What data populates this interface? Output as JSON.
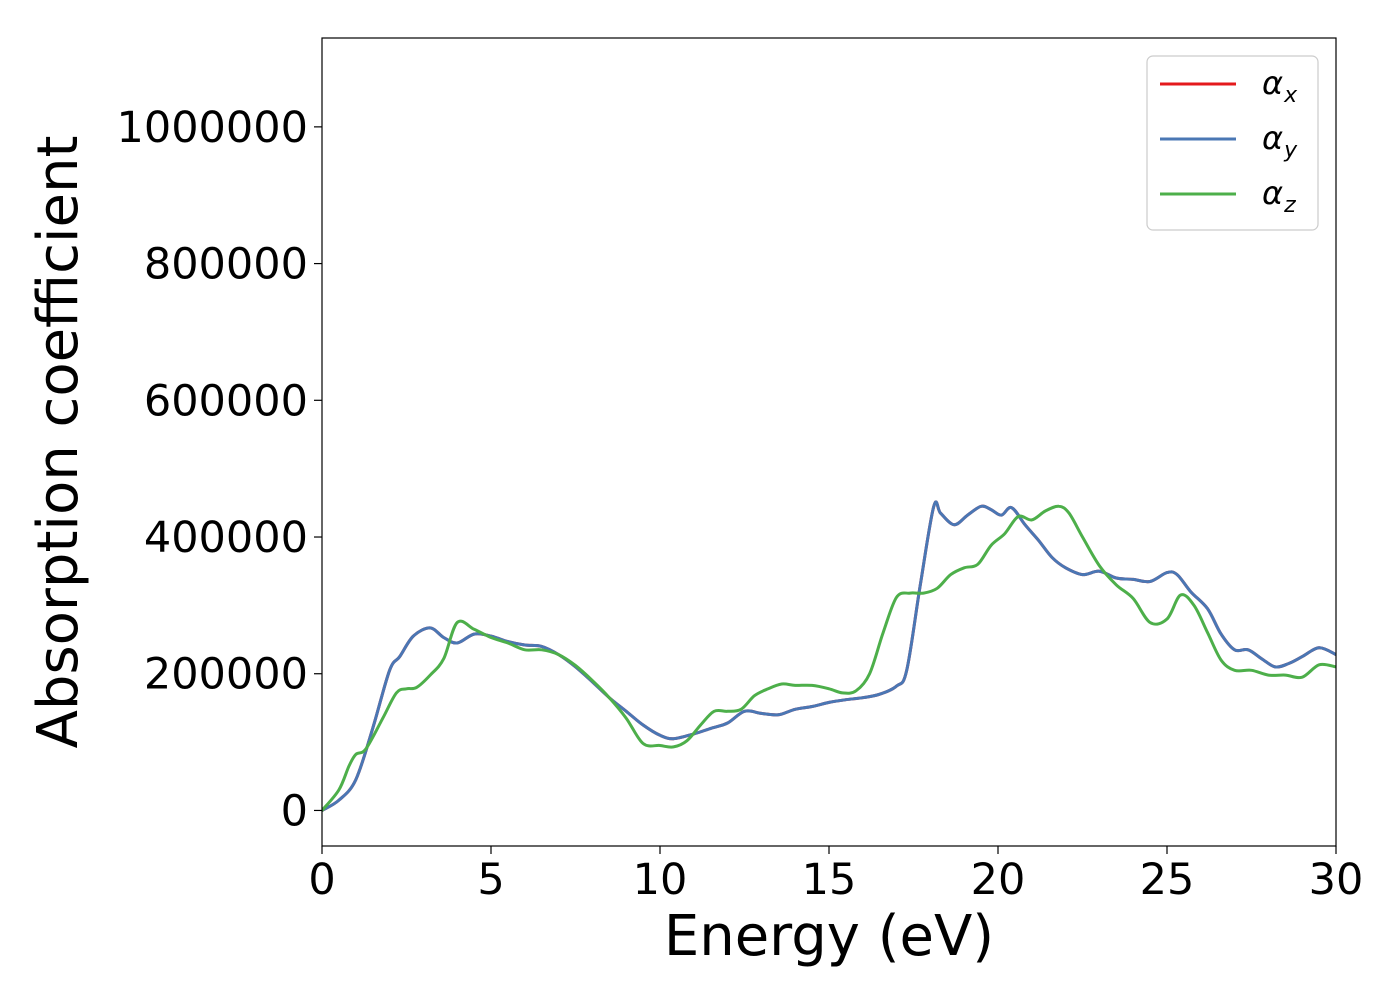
{
  "chart_data": {
    "type": "line",
    "title": "",
    "xlabel": "Energy (eV)",
    "ylabel": "Absorption coefficient",
    "xlim": [
      0,
      30
    ],
    "ylim": [
      -52000,
      1130000
    ],
    "xticks": [
      0,
      5,
      10,
      15,
      20,
      25,
      30
    ],
    "yticks": [
      0,
      200000,
      400000,
      600000,
      800000,
      1000000
    ],
    "xtick_labels": [
      "0",
      "5",
      "10",
      "15",
      "20",
      "25",
      "30"
    ],
    "ytick_labels": [
      "0",
      "200000",
      "400000",
      "600000",
      "800000",
      "1000000"
    ],
    "grid": false,
    "legend_position": "top-right",
    "series": [
      {
        "name": "α",
        "subscript": "x",
        "color": "#e41a1c",
        "x": [
          0,
          0.5,
          1.0,
          1.5,
          2.0,
          2.3,
          2.7,
          3.2,
          3.6,
          4.0,
          4.5,
          5.0,
          5.5,
          6.0,
          6.5,
          7.0,
          7.5,
          8.0,
          8.5,
          9.0,
          9.5,
          10.0,
          10.4,
          11.0,
          11.5,
          12.0,
          12.5,
          13.0,
          13.5,
          14.0,
          14.5,
          15.0,
          15.5,
          16.0,
          16.5,
          17.0,
          17.3,
          17.7,
          18.1,
          18.3,
          18.7,
          19.1,
          19.5,
          19.8,
          20.1,
          20.4,
          20.8,
          21.2,
          21.6,
          22.0,
          22.5,
          23.0,
          23.5,
          24.0,
          24.5,
          25.0,
          25.3,
          25.7,
          26.2,
          26.6,
          27.0,
          27.4,
          27.8,
          28.2,
          28.6,
          29.0,
          29.5,
          30.0
        ],
        "values": [
          0,
          15000,
          45000,
          120000,
          205000,
          225000,
          255000,
          267000,
          253000,
          245000,
          258000,
          255000,
          247000,
          242000,
          240000,
          228000,
          210000,
          188000,
          165000,
          145000,
          125000,
          110000,
          105000,
          112000,
          120000,
          128000,
          145000,
          142000,
          140000,
          148000,
          152000,
          158000,
          162000,
          165000,
          170000,
          182000,
          205000,
          330000,
          445000,
          435000,
          418000,
          432000,
          445000,
          440000,
          432000,
          443000,
          418000,
          395000,
          370000,
          355000,
          345000,
          350000,
          340000,
          338000,
          335000,
          348000,
          345000,
          320000,
          295000,
          258000,
          235000,
          235000,
          222000,
          210000,
          215000,
          225000,
          238000,
          228000
        ]
      },
      {
        "name": "α",
        "subscript": "y",
        "color": "#4a77b4",
        "x": [
          0,
          0.5,
          1.0,
          1.5,
          2.0,
          2.3,
          2.7,
          3.2,
          3.6,
          4.0,
          4.5,
          5.0,
          5.5,
          6.0,
          6.5,
          7.0,
          7.5,
          8.0,
          8.5,
          9.0,
          9.5,
          10.0,
          10.4,
          11.0,
          11.5,
          12.0,
          12.5,
          13.0,
          13.5,
          14.0,
          14.5,
          15.0,
          15.5,
          16.0,
          16.5,
          17.0,
          17.3,
          17.7,
          18.1,
          18.3,
          18.7,
          19.1,
          19.5,
          19.8,
          20.1,
          20.4,
          20.8,
          21.2,
          21.6,
          22.0,
          22.5,
          23.0,
          23.5,
          24.0,
          24.5,
          25.0,
          25.3,
          25.7,
          26.2,
          26.6,
          27.0,
          27.4,
          27.8,
          28.2,
          28.6,
          29.0,
          29.5,
          30.0
        ],
        "values": [
          0,
          15000,
          45000,
          120000,
          205000,
          225000,
          255000,
          267000,
          253000,
          245000,
          258000,
          255000,
          247000,
          242000,
          240000,
          228000,
          210000,
          188000,
          165000,
          145000,
          125000,
          110000,
          105000,
          112000,
          120000,
          128000,
          145000,
          142000,
          140000,
          148000,
          152000,
          158000,
          162000,
          165000,
          170000,
          182000,
          205000,
          330000,
          445000,
          435000,
          418000,
          432000,
          445000,
          440000,
          432000,
          443000,
          418000,
          395000,
          370000,
          355000,
          345000,
          350000,
          340000,
          338000,
          335000,
          348000,
          345000,
          320000,
          295000,
          258000,
          235000,
          235000,
          222000,
          210000,
          215000,
          225000,
          238000,
          228000
        ]
      },
      {
        "name": "α",
        "subscript": "z",
        "color": "#4daf4a",
        "x": [
          0,
          0.5,
          0.8,
          1.0,
          1.3,
          1.8,
          2.2,
          2.5,
          2.8,
          3.2,
          3.6,
          4.0,
          4.5,
          5.0,
          5.5,
          6.0,
          6.5,
          7.0,
          7.5,
          8.0,
          8.5,
          9.0,
          9.5,
          10.0,
          10.4,
          10.8,
          11.2,
          11.6,
          12.0,
          12.4,
          12.8,
          13.2,
          13.6,
          14.0,
          14.5,
          15.0,
          15.4,
          15.8,
          16.2,
          16.6,
          17.0,
          17.4,
          17.8,
          18.2,
          18.6,
          19.0,
          19.4,
          19.8,
          20.2,
          20.6,
          21.0,
          21.4,
          21.8,
          22.1,
          22.5,
          23.0,
          23.5,
          24.0,
          24.5,
          25.0,
          25.4,
          25.8,
          26.2,
          26.6,
          27.0,
          27.5,
          28.0,
          28.5,
          29.0,
          29.5,
          30.0
        ],
        "values": [
          0,
          30000,
          65000,
          82000,
          90000,
          135000,
          172000,
          178000,
          180000,
          198000,
          222000,
          275000,
          265000,
          253000,
          245000,
          235000,
          235000,
          228000,
          212000,
          190000,
          165000,
          135000,
          98000,
          95000,
          93000,
          102000,
          125000,
          145000,
          145000,
          148000,
          168000,
          178000,
          185000,
          183000,
          183000,
          178000,
          172000,
          175000,
          200000,
          260000,
          312000,
          318000,
          318000,
          325000,
          345000,
          355000,
          360000,
          388000,
          405000,
          430000,
          425000,
          438000,
          445000,
          435000,
          400000,
          358000,
          330000,
          310000,
          275000,
          280000,
          315000,
          300000,
          260000,
          220000,
          205000,
          205000,
          198000,
          198000,
          195000,
          213000,
          210000
        ]
      }
    ]
  }
}
